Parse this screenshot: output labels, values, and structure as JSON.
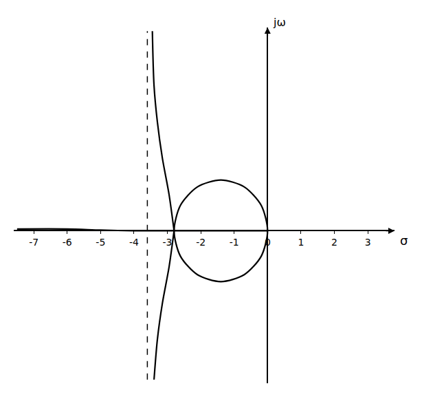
{
  "chart_data": {
    "type": "line",
    "x_label": "σ",
    "y_label": "jω",
    "xlim": [
      -7.6,
      3.8
    ],
    "xticks": [
      -7,
      -6,
      -5,
      -4,
      -3,
      -2,
      -1,
      0,
      1,
      2,
      3
    ],
    "ylim": [
      -4.2,
      5.6
    ],
    "tick_labels": "x",
    "grid": false,
    "series": [
      {
        "color": "#000000",
        "line_style": "solid",
        "x": [
          -7.5,
          -6,
          -5,
          -4,
          -2.8,
          -2,
          -1,
          0
        ],
        "y": [
          0.05,
          0.05,
          0.02,
          0,
          0,
          0,
          0,
          0
        ]
      },
      {
        "color": "#000000",
        "line_style": "solid",
        "x": [
          0,
          -0.19,
          -0.7,
          -1.4,
          -2.1,
          -2.61,
          -2.8,
          -2.61,
          -2.1,
          -1.4,
          -0.7,
          -0.19,
          0
        ],
        "y": [
          0,
          0.7,
          1.21,
          1.4,
          1.21,
          0.7,
          0,
          -0.7,
          -1.21,
          -1.4,
          -1.21,
          -0.7,
          0
        ]
      },
      {
        "color": "#000000",
        "line_style": "solid",
        "x": [
          -2.8,
          -2.95,
          -3.15,
          -3.3,
          -3.4,
          -3.45
        ],
        "y": [
          0,
          1,
          2,
          3,
          4,
          5.5
        ]
      },
      {
        "color": "#000000",
        "line_style": "solid",
        "x": [
          -2.8,
          -2.95,
          -3.15,
          -3.3,
          -3.4
        ],
        "y": [
          0,
          -1,
          -2,
          -3,
          -4.1
        ]
      },
      {
        "color": "#000000",
        "line_style": "dash",
        "x": [
          -3.6,
          -3.6
        ],
        "y": [
          -4.1,
          5.5
        ]
      }
    ]
  }
}
